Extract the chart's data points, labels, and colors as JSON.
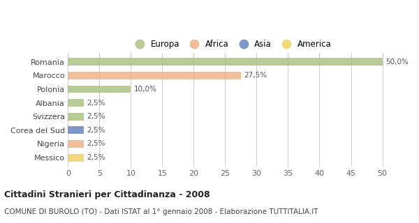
{
  "categories": [
    "Romania",
    "Marocco",
    "Polonia",
    "Albania",
    "Svizzera",
    "Corea del Sud",
    "Nigeria",
    "Messico"
  ],
  "values": [
    50.0,
    27.5,
    10.0,
    2.5,
    2.5,
    2.5,
    2.5,
    2.5
  ],
  "bar_colors": [
    "#a8c080",
    "#f0b080",
    "#a8c080",
    "#a8c080",
    "#a8c080",
    "#6080c0",
    "#f0b080",
    "#f0d060"
  ],
  "bar_labels": [
    "50,0%",
    "27,5%",
    "10,0%",
    "2,5%",
    "2,5%",
    "2,5%",
    "2,5%",
    "2,5%"
  ],
  "legend_labels": [
    "Europa",
    "Africa",
    "Asia",
    "America"
  ],
  "legend_colors": [
    "#a8c080",
    "#f0b080",
    "#6080c0",
    "#f0d060"
  ],
  "title": "Cittadini Stranieri per Cittadinanza - 2008",
  "subtitle": "COMUNE DI BUROLO (TO) - Dati ISTAT al 1° gennaio 2008 - Elaborazione TUTTITALIA.IT",
  "xlim": [
    0,
    50
  ],
  "xtick_step": 5,
  "background_color": "#ffffff",
  "grid_color": "#cccccc",
  "bar_alpha": 0.82
}
